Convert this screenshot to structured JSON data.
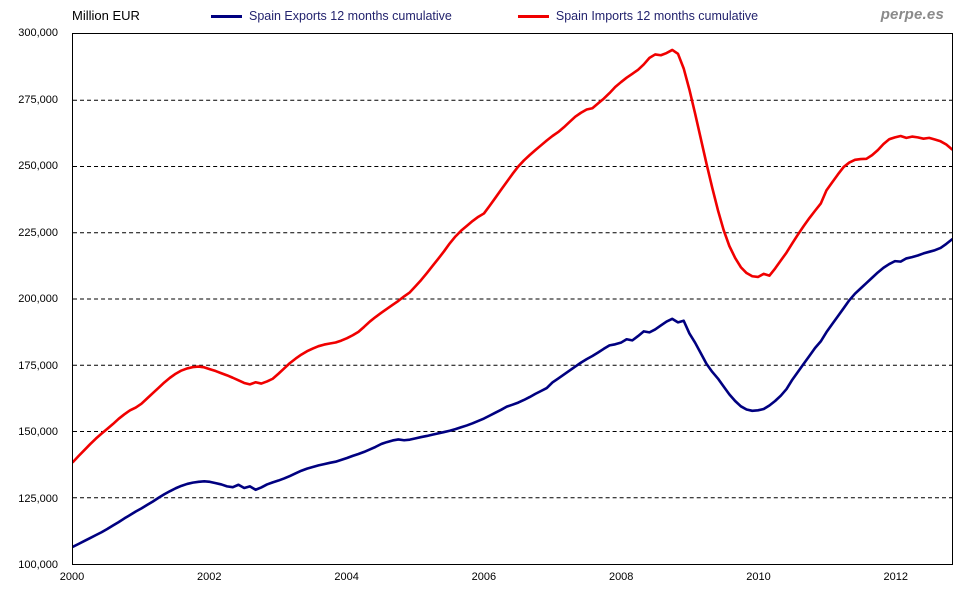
{
  "header": {
    "y_axis_title": "Million EUR",
    "watermark": "perpe.es"
  },
  "legend": [
    {
      "label": "Spain Exports 12 months cumulative",
      "color": "#000080"
    },
    {
      "label": "Spain Imports 12 months cumulative",
      "color": "#f00000"
    }
  ],
  "colors": {
    "exports_line": "#000080",
    "imports_line": "#f00000",
    "grid": "#000000",
    "text": "#000000",
    "legend_text": "#23236e",
    "watermark": "#8a8a8a",
    "background": "#ffffff"
  },
  "chart_data": {
    "type": "line",
    "title": "Million EUR",
    "xlabel": "",
    "ylabel": "Million EUR",
    "x_start": {
      "year": 2000,
      "month": 1
    },
    "x_end": {
      "year": 2012,
      "month": 11
    },
    "x_resolution": "monthly",
    "x_tick_years": [
      2000,
      2002,
      2004,
      2006,
      2008,
      2010,
      2012
    ],
    "ylim": [
      100000,
      300000
    ],
    "y_tick_step": 25000,
    "y_ticks": [
      {
        "value": 300000,
        "label": "300,000"
      },
      {
        "value": 275000,
        "label": "275,000"
      },
      {
        "value": 250000,
        "label": "250,000"
      },
      {
        "value": 225000,
        "label": "225,000"
      },
      {
        "value": 200000,
        "label": "200,000"
      },
      {
        "value": 175000,
        "label": "175,000"
      },
      {
        "value": 150000,
        "label": "150,000"
      },
      {
        "value": 125000,
        "label": "125,000"
      },
      {
        "value": 100000,
        "label": "100,000"
      }
    ],
    "grid": "horizontal-dashed",
    "legend_position": "top",
    "series": [
      {
        "name": "Spain Exports 12 months cumulative",
        "color": "#000080",
        "values": [
          106500,
          107600,
          108700,
          109800,
          110900,
          112000,
          113200,
          114500,
          115800,
          117200,
          118500,
          119800,
          121000,
          122300,
          123600,
          125000,
          126300,
          127500,
          128600,
          129500,
          130200,
          130700,
          131000,
          131200,
          131000,
          130500,
          130000,
          129300,
          129000,
          129900,
          128700,
          129300,
          128000,
          128900,
          130000,
          130800,
          131500,
          132300,
          133200,
          134200,
          135200,
          136000,
          136600,
          137200,
          137700,
          138200,
          138600,
          139300,
          140000,
          140800,
          141500,
          142300,
          143200,
          144200,
          145300,
          146000,
          146600,
          147000,
          146700,
          146900,
          147400,
          147900,
          148300,
          148800,
          149300,
          149800,
          150300,
          150900,
          151600,
          152300,
          153100,
          154000,
          154900,
          156000,
          157100,
          158200,
          159400,
          160100,
          160900,
          161900,
          163000,
          164200,
          165300,
          166400,
          168500,
          170000,
          171500,
          173000,
          174500,
          176000,
          177300,
          178500,
          179800,
          181200,
          182500,
          182900,
          183500,
          184800,
          184400,
          186000,
          187800,
          187400,
          188500,
          190000,
          191500,
          192500,
          191200,
          191800,
          187000,
          183500,
          179500,
          175500,
          172500,
          170000,
          167000,
          164000,
          161500,
          159500,
          158300,
          157800,
          158000,
          158500,
          159800,
          161500,
          163500,
          166000,
          169500,
          172500,
          175500,
          178500,
          181500,
          184000,
          187500,
          190500,
          193500,
          196500,
          199500,
          202000,
          204000,
          206000,
          208000,
          210000,
          211800,
          213200,
          214300,
          214100,
          215300,
          215800,
          216400,
          217200,
          217800,
          218400,
          219300,
          220800,
          222500
        ]
      },
      {
        "name": "Spain Imports 12 months cumulative",
        "color": "#f00000",
        "values": [
          138500,
          140800,
          143000,
          145200,
          147300,
          149200,
          151000,
          152800,
          154800,
          156500,
          158000,
          159000,
          160500,
          162500,
          164500,
          166500,
          168500,
          170300,
          171800,
          173000,
          173800,
          174300,
          174500,
          174200,
          173500,
          172800,
          172000,
          171200,
          170300,
          169300,
          168300,
          167800,
          168600,
          168100,
          168900,
          169900,
          171800,
          173800,
          175800,
          177500,
          179000,
          180300,
          181300,
          182200,
          182800,
          183200,
          183600,
          184300,
          185200,
          186300,
          187600,
          189500,
          191500,
          193200,
          194800,
          196300,
          197800,
          199300,
          201000,
          202500,
          204800,
          207200,
          209800,
          212500,
          215200,
          218000,
          221000,
          223600,
          225800,
          227600,
          229400,
          231000,
          232300,
          235200,
          238200,
          241200,
          244200,
          247200,
          250000,
          252300,
          254300,
          256200,
          258000,
          259800,
          261500,
          263000,
          264800,
          266800,
          268800,
          270300,
          271500,
          272000,
          273800,
          275600,
          277700,
          280000,
          281800,
          283500,
          285000,
          286500,
          288500,
          291000,
          292300,
          292000,
          292800,
          294000,
          292500,
          287000,
          279000,
          270000,
          260500,
          251000,
          242000,
          233500,
          226000,
          220000,
          215500,
          212000,
          209800,
          208600,
          208300,
          209500,
          208800,
          211500,
          214500,
          217500,
          221000,
          224300,
          227500,
          230500,
          233300,
          236000,
          241000,
          244000,
          247000,
          249800,
          251500,
          252500,
          252800,
          252900,
          254300,
          256200,
          258500,
          260300,
          261000,
          261500,
          260800,
          261300,
          261000,
          260500,
          260800,
          260200,
          259500,
          258300,
          256500
        ]
      }
    ]
  }
}
